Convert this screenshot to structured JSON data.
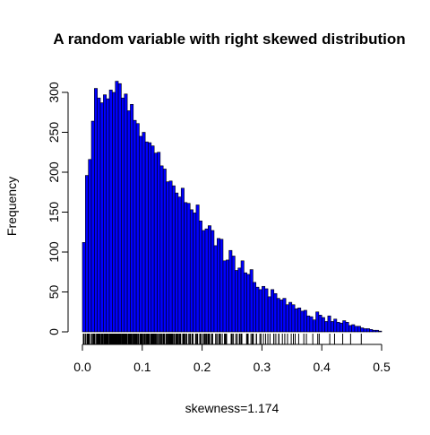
{
  "chart_data": {
    "type": "bar",
    "title": "A random variable with right skewed distribution",
    "xlabel": "skewness=1.174",
    "ylabel": "Frequency",
    "xlim": [
      0,
      0.5
    ],
    "ylim": [
      0,
      300
    ],
    "bin_width": 0.005,
    "bar_color": "#0000ff",
    "bar_edge_color": "#000000",
    "x_ticks": [
      0.0,
      0.1,
      0.2,
      0.3,
      0.4,
      0.5
    ],
    "x_tick_labels": [
      "0.0",
      "0.1",
      "0.2",
      "0.3",
      "0.4",
      "0.5"
    ],
    "y_ticks": [
      0,
      50,
      100,
      150,
      200,
      250,
      300
    ],
    "y_tick_labels": [
      "0",
      "50",
      "100",
      "150",
      "200",
      "250",
      "300"
    ],
    "grid": false,
    "rug": true,
    "values": [
      112,
      196,
      216,
      264,
      305,
      293,
      287,
      297,
      292,
      303,
      300,
      314,
      311,
      293,
      298,
      277,
      285,
      265,
      261,
      245,
      250,
      238,
      237,
      233,
      224,
      225,
      208,
      204,
      188,
      189,
      183,
      174,
      169,
      180,
      162,
      161,
      153,
      149,
      159,
      139,
      127,
      129,
      133,
      127,
      108,
      117,
      116,
      89,
      90,
      102,
      95,
      77,
      80,
      89,
      74,
      72,
      78,
      62,
      56,
      53,
      57,
      54,
      44,
      53,
      48,
      42,
      40,
      42,
      34,
      37,
      34,
      29,
      30,
      26,
      27,
      20,
      19,
      15,
      25,
      21,
      18,
      13,
      20,
      13,
      16,
      12,
      11,
      14,
      12,
      8,
      9,
      7,
      7,
      5,
      4,
      4,
      3,
      2,
      2,
      1
    ]
  }
}
